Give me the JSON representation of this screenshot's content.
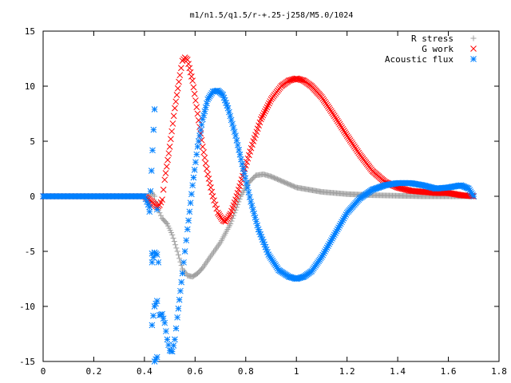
{
  "chart_data": {
    "type": "scatter",
    "title": "m1/n1.5/q1.5/r-+.25-j258/M5.0/1024",
    "xlabel": "",
    "ylabel": "",
    "xlim": [
      0,
      1.8
    ],
    "ylim": [
      -15,
      15
    ],
    "x_ticks": [
      "0",
      "0.2",
      "0.4",
      "0.6",
      "0.8",
      "1",
      "1.2",
      "1.4",
      "1.6",
      "1.8"
    ],
    "y_ticks": [
      "15",
      "10",
      "5",
      "0",
      "-5",
      "-10",
      "-15"
    ],
    "grid": false,
    "legend_position": "top-right",
    "series": [
      {
        "name": "R stress",
        "marker": "+",
        "color": "#a0a0a0",
        "points": [
          [
            0.0,
            0.0
          ],
          [
            0.2,
            0.0
          ],
          [
            0.4,
            0.0
          ],
          [
            0.42,
            0.0
          ],
          [
            0.43,
            0.3
          ],
          [
            0.44,
            0.0
          ],
          [
            0.45,
            -1.0
          ],
          [
            0.47,
            -2.0
          ],
          [
            0.49,
            -2.5
          ],
          [
            0.51,
            -3.5
          ],
          [
            0.53,
            -5.0
          ],
          [
            0.55,
            -6.6
          ],
          [
            0.57,
            -7.2
          ],
          [
            0.59,
            -7.3
          ],
          [
            0.61,
            -7.0
          ],
          [
            0.63,
            -6.5
          ],
          [
            0.66,
            -5.5
          ],
          [
            0.7,
            -4.2
          ],
          [
            0.74,
            -2.5
          ],
          [
            0.78,
            0.0
          ],
          [
            0.81,
            1.2
          ],
          [
            0.84,
            1.9
          ],
          [
            0.87,
            2.0
          ],
          [
            0.9,
            1.8
          ],
          [
            0.95,
            1.3
          ],
          [
            1.0,
            0.8
          ],
          [
            1.1,
            0.4
          ],
          [
            1.2,
            0.2
          ],
          [
            1.3,
            0.1
          ],
          [
            1.4,
            0.05
          ],
          [
            1.5,
            0.0
          ],
          [
            1.6,
            0.0
          ],
          [
            1.7,
            0.0
          ]
        ]
      },
      {
        "name": "G work",
        "marker": "x",
        "color": "#ff0000",
        "points": [
          [
            0.0,
            0.0
          ],
          [
            0.2,
            0.0
          ],
          [
            0.4,
            0.0
          ],
          [
            0.43,
            -0.5
          ],
          [
            0.45,
            -1.0
          ],
          [
            0.46,
            -0.8
          ],
          [
            0.47,
            -0.3
          ],
          [
            0.48,
            1.5
          ],
          [
            0.5,
            4.5
          ],
          [
            0.52,
            8.0
          ],
          [
            0.54,
            11.0
          ],
          [
            0.55,
            12.3
          ],
          [
            0.56,
            12.6
          ],
          [
            0.57,
            12.4
          ],
          [
            0.59,
            10.5
          ],
          [
            0.61,
            7.5
          ],
          [
            0.63,
            4.5
          ],
          [
            0.65,
            2.0
          ],
          [
            0.67,
            0.0
          ],
          [
            0.69,
            -1.5
          ],
          [
            0.71,
            -2.2
          ],
          [
            0.72,
            -2.3
          ],
          [
            0.74,
            -1.6
          ],
          [
            0.76,
            -0.3
          ],
          [
            0.78,
            1.2
          ],
          [
            0.8,
            2.8
          ],
          [
            0.83,
            5.0
          ],
          [
            0.86,
            7.0
          ],
          [
            0.9,
            8.8
          ],
          [
            0.94,
            10.0
          ],
          [
            0.97,
            10.5
          ],
          [
            1.0,
            10.7
          ],
          [
            1.03,
            10.5
          ],
          [
            1.06,
            10.0
          ],
          [
            1.1,
            9.0
          ],
          [
            1.15,
            7.3
          ],
          [
            1.2,
            5.5
          ],
          [
            1.25,
            3.8
          ],
          [
            1.3,
            2.3
          ],
          [
            1.35,
            1.3
          ],
          [
            1.4,
            0.8
          ],
          [
            1.45,
            0.5
          ],
          [
            1.5,
            0.4
          ],
          [
            1.55,
            0.3
          ],
          [
            1.6,
            0.3
          ],
          [
            1.65,
            0.1
          ],
          [
            1.7,
            0.0
          ]
        ]
      },
      {
        "name": "Acoustic flux",
        "marker": "*",
        "color": "#0080ff",
        "points": [
          [
            0.0,
            0.0
          ],
          [
            0.2,
            0.0
          ],
          [
            0.4,
            0.0
          ],
          [
            0.42,
            -1.0
          ],
          [
            0.42,
            -1.4
          ],
          [
            0.44,
            7.9
          ],
          [
            0.43,
            -5.2
          ],
          [
            0.43,
            -6.0
          ],
          [
            0.44,
            -5.1
          ],
          [
            0.45,
            -5.3
          ],
          [
            0.43,
            -11.7
          ],
          [
            0.44,
            -10.0
          ],
          [
            0.45,
            -9.5
          ],
          [
            0.44,
            -15.0
          ],
          [
            0.45,
            -14.6
          ],
          [
            0.45,
            -1.2
          ],
          [
            0.46,
            -10.8
          ],
          [
            0.47,
            -10.7
          ],
          [
            0.48,
            -11.5
          ],
          [
            0.49,
            -13.0
          ],
          [
            0.5,
            -14.0
          ],
          [
            0.51,
            -14.1
          ],
          [
            0.52,
            -13.0
          ],
          [
            0.53,
            -11.0
          ],
          [
            0.55,
            -7.0
          ],
          [
            0.57,
            -3.0
          ],
          [
            0.59,
            1.0
          ],
          [
            0.61,
            4.5
          ],
          [
            0.63,
            7.0
          ],
          [
            0.65,
            8.8
          ],
          [
            0.67,
            9.5
          ],
          [
            0.69,
            9.6
          ],
          [
            0.71,
            9.2
          ],
          [
            0.73,
            8.0
          ],
          [
            0.76,
            5.5
          ],
          [
            0.79,
            2.5
          ],
          [
            0.82,
            -0.5
          ],
          [
            0.85,
            -3.0
          ],
          [
            0.89,
            -5.3
          ],
          [
            0.93,
            -6.7
          ],
          [
            0.97,
            -7.3
          ],
          [
            1.0,
            -7.5
          ],
          [
            1.03,
            -7.3
          ],
          [
            1.06,
            -6.8
          ],
          [
            1.1,
            -5.5
          ],
          [
            1.15,
            -3.5
          ],
          [
            1.2,
            -1.5
          ],
          [
            1.25,
            -0.2
          ],
          [
            1.3,
            0.6
          ],
          [
            1.35,
            1.0
          ],
          [
            1.4,
            1.2
          ],
          [
            1.45,
            1.2
          ],
          [
            1.5,
            1.0
          ],
          [
            1.55,
            0.7
          ],
          [
            1.6,
            0.8
          ],
          [
            1.65,
            1.0
          ],
          [
            1.68,
            0.7
          ],
          [
            1.7,
            0.0
          ]
        ]
      }
    ]
  }
}
